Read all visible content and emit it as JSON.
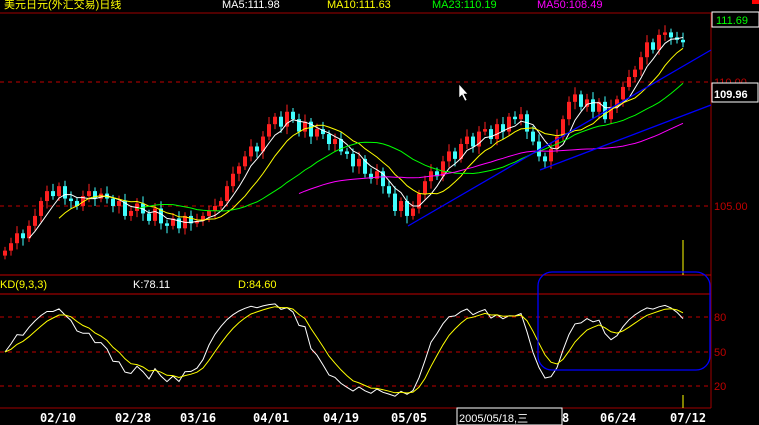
{
  "header": {
    "title": "美元日元(外汇交易)日线",
    "ma5": "MA5:111.98",
    "ma10": "MA10:111.63",
    "ma23": "MA23:110.19",
    "ma50": "MA50:108.49"
  },
  "price_axis": {
    "top_label": "111.69",
    "current_label": "109.96",
    "ticks": [
      "110.00",
      "105.00"
    ]
  },
  "kd_panel": {
    "title": "KD(9,3,3)",
    "k": "K:78.11",
    "d": "D:84.60",
    "ticks": [
      "80",
      "50",
      "20"
    ]
  },
  "date_axis": {
    "ticks": [
      "02/10",
      "02/28",
      "03/16",
      "04/01",
      "04/19",
      "05/05",
      "8",
      "06/24",
      "07/12"
    ],
    "tooltip": "2005/05/18,三"
  },
  "colors": {
    "up": "#ff2020",
    "down": "#40ffff",
    "ma5": "#ffffff",
    "ma10": "#ffff00",
    "ma23": "#00ff00",
    "ma50": "#ff00ff",
    "trendline": "#0000ff",
    "grid": "#a00000"
  },
  "chart_data": {
    "type": "candlestick",
    "title": "美元日元(外汇交易)日线",
    "ylim": [
      102.5,
      113.0
    ],
    "closes": [
      103.2,
      103.5,
      103.9,
      103.7,
      104.2,
      104.6,
      105.2,
      105.6,
      105.4,
      105.8,
      105.3,
      105.2,
      105.0,
      105.4,
      105.6,
      105.3,
      105.5,
      105.3,
      105.0,
      105.2,
      104.6,
      104.8,
      105.1,
      104.7,
      104.4,
      104.9,
      104.3,
      104.2,
      104.5,
      104.1,
      104.6,
      104.3,
      104.4,
      104.6,
      104.8,
      105.0,
      105.2,
      105.8,
      106.3,
      106.6,
      107.0,
      107.4,
      107.2,
      107.8,
      108.3,
      108.6,
      108.2,
      108.8,
      108.5,
      108.0,
      108.4,
      107.8,
      108.1,
      107.9,
      107.5,
      107.7,
      107.2,
      107.1,
      106.6,
      106.9,
      106.3,
      106.1,
      106.4,
      105.8,
      105.5,
      104.8,
      105.2,
      104.6,
      104.9,
      105.5,
      106.0,
      106.4,
      106.2,
      106.8,
      107.2,
      106.9,
      107.5,
      107.8,
      107.4,
      108.0,
      108.1,
      107.7,
      108.3,
      108.0,
      108.6,
      108.5,
      108.7,
      108.0,
      107.6,
      107.0,
      106.8,
      107.3,
      107.8,
      108.5,
      109.2,
      109.5,
      109.0,
      109.3,
      108.8,
      109.2,
      108.5,
      109.0,
      109.3,
      109.8,
      110.2,
      110.5,
      111.0,
      111.6,
      111.3,
      111.9,
      112.0,
      111.8,
      111.7,
      111.6
    ],
    "moving_averages": [
      5,
      10,
      23,
      50
    ],
    "indicator": {
      "name": "KD",
      "params": [
        9,
        3,
        3
      ],
      "levels": [
        80,
        50,
        20
      ],
      "ylim": [
        0,
        100
      ]
    },
    "grid": true
  }
}
